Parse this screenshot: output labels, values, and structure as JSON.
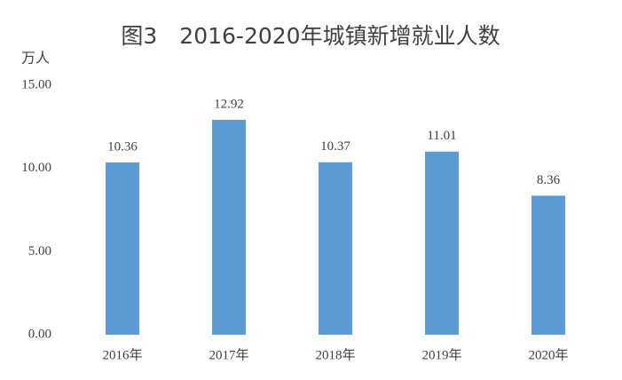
{
  "chart_data": {
    "type": "bar",
    "title": "图3　2016-2020年城镇新增就业人数",
    "y_label": "万人",
    "categories": [
      "2016年",
      "2017年",
      "2018年",
      "2019年",
      "2020年"
    ],
    "values": [
      10.36,
      12.92,
      10.37,
      11.01,
      8.36
    ],
    "color": "#5b9bd5",
    "ylim": [
      0,
      15
    ],
    "yticks": [
      {
        "value": 0,
        "label": "0.00"
      },
      {
        "value": 5,
        "label": "5.00"
      },
      {
        "value": 10,
        "label": "10.00"
      },
      {
        "value": 15,
        "label": "15.00"
      }
    ],
    "grid": false
  }
}
